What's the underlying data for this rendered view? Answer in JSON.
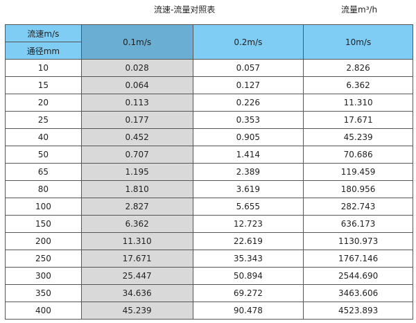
{
  "title": "流速-流量对照表",
  "unit_label": "流量m³/h",
  "header": {
    "velocity_label": "流速m/s",
    "diameter_label": "通径mm",
    "columns": [
      "0.1m/s",
      "0.2m/s",
      "10m/s"
    ]
  },
  "colors": {
    "header": "#7fcdf4",
    "highlight_header": "#6aaed3",
    "highlight_column": "#d9d9d9"
  },
  "rows": [
    [
      "10",
      "0.028",
      "0.057",
      "2.826"
    ],
    [
      "15",
      "0.064",
      "0.127",
      "6.362"
    ],
    [
      "20",
      "0.113",
      "0.226",
      "11.310"
    ],
    [
      "25",
      "0.177",
      "0.353",
      "17.671"
    ],
    [
      "40",
      "0.452",
      "0.905",
      "45.239"
    ],
    [
      "50",
      "0.707",
      "1.414",
      "70.686"
    ],
    [
      "65",
      "1.195",
      "2.389",
      "119.459"
    ],
    [
      "80",
      "1.810",
      "3.619",
      "180.956"
    ],
    [
      "100",
      "2.827",
      "5.655",
      "282.743"
    ],
    [
      "150",
      "6.362",
      "12.723",
      "636.173"
    ],
    [
      "200",
      "11.310",
      "22.619",
      "1130.973"
    ],
    [
      "250",
      "17.671",
      "35.343",
      "1767.146"
    ],
    [
      "300",
      "25.447",
      "50.894",
      "2544.690"
    ],
    [
      "350",
      "34.636",
      "69.272",
      "3463.606"
    ],
    [
      "400",
      "45.239",
      "90.478",
      "4523.893"
    ]
  ]
}
